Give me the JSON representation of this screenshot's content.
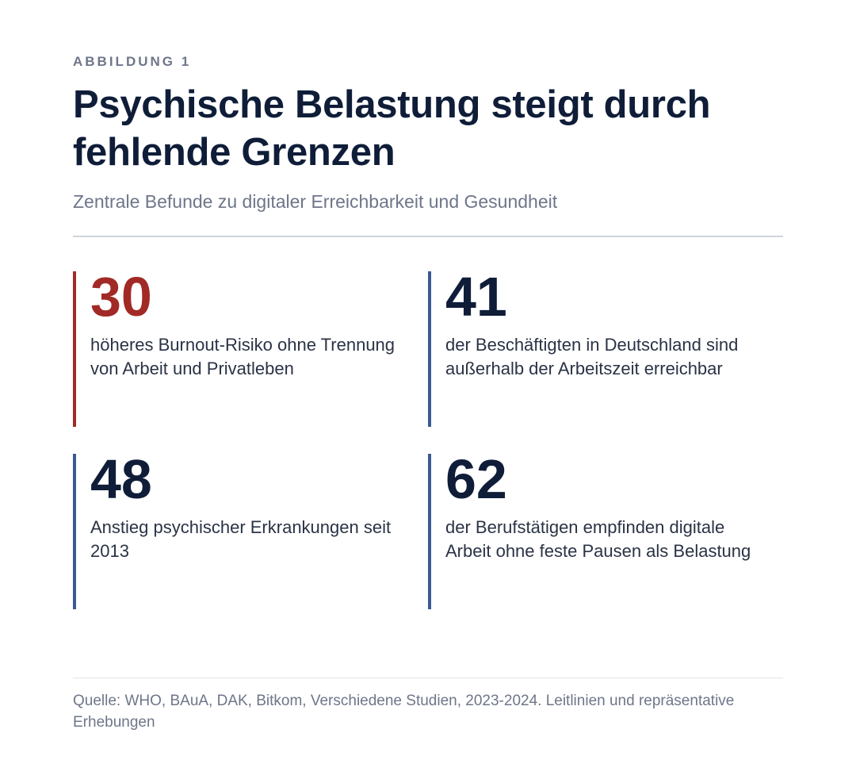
{
  "figure": {
    "kicker": "ABBILDUNG 1",
    "title": "Psychische Belastung steigt durch fehlende Grenzen",
    "subtitle": "Zentrale Befunde zu digitaler Erreichbarkeit und Gesundheit",
    "stats": [
      {
        "value": "30",
        "description": "höheres Burnout-Risiko ohne Trennung von Arbeit und Privatleben",
        "accent": true
      },
      {
        "value": "41",
        "description": "der Beschäftigten in Deutschland sind außerhalb der Arbeitszeit erreichbar",
        "accent": false
      },
      {
        "value": "48",
        "description": "Anstieg psychischer Erkrankungen seit 2013",
        "accent": false
      },
      {
        "value": "62",
        "description": "der Berufstätigen empfinden digitale Arbeit ohne feste Pausen als Belastung",
        "accent": false
      }
    ],
    "source": "Quelle: WHO, BAuA, DAK, Bitkom, Verschiedene Studien, 2023-2024. Leitlinien und repräsentative Erhebungen"
  },
  "colors": {
    "title": "#0f1d38",
    "accent_red": "#a12a26",
    "accent_blue": "#3a5a92",
    "muted": "#6e7689",
    "body_text": "#2a3345"
  }
}
